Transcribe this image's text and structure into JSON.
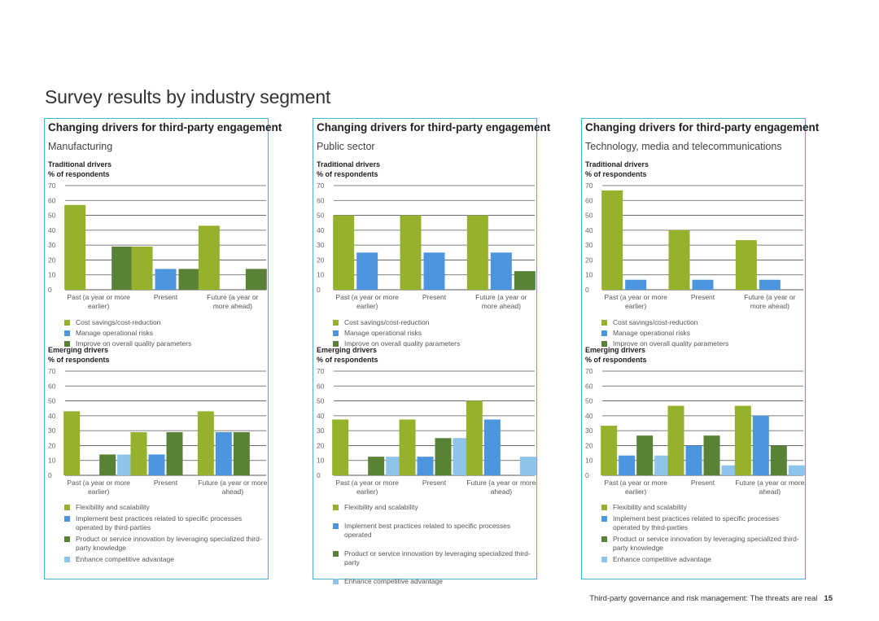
{
  "page": {
    "title": "Survey results by industry segment",
    "footer_text": "Third-party governance and risk management: The threats are real",
    "page_number": "15"
  },
  "colors": {
    "border": "#49b0d8",
    "green": "#96b12b",
    "blue": "#4c96e0",
    "dark_green": "#5a8237",
    "light_blue": "#8ec3ea"
  },
  "labels": {
    "traditional_title": "Traditional drivers",
    "emerging_title": "Emerging drivers",
    "y_unit": "% of respondents"
  },
  "legends": {
    "traditional": [
      {
        "name": "Cost savings/cost-reduction",
        "color": "#96b12b"
      },
      {
        "name": "Manage operational risks",
        "color": "#4c96e0"
      },
      {
        "name": "Improve on overall quality parameters",
        "color": "#5a8237"
      }
    ],
    "emerging": [
      {
        "name": "Flexibility and scalability",
        "color": "#96b12b"
      },
      {
        "name": "Implement best practices related to specific processes operated by third-parties",
        "color": "#4c96e0"
      },
      {
        "name": "Product or service innovation by leveraging specialized third-party knowledge",
        "color": "#5a8237"
      },
      {
        "name": "Enhance competitive advantage",
        "color": "#8ec3ea"
      }
    ],
    "emerging_public": [
      {
        "name": "Flexibility and scalability",
        "color": "#96b12b"
      },
      {
        "name": "Implement best practices related to specific processes operated",
        "color": "#4c96e0"
      },
      {
        "name": "Product or service innovation by leveraging specialized third-party",
        "color": "#5a8237"
      },
      {
        "name": "Enhance competitive advantage",
        "color": "#8ec3ea"
      }
    ]
  },
  "panels": [
    {
      "title": "Changing drivers for third-party engagement",
      "subtitle": "Manufacturing"
    },
    {
      "title": "Changing drivers for third-party engagement",
      "subtitle": "Public sector"
    },
    {
      "title": "Changing drivers for third-party engagement",
      "subtitle": "Technology, media and telecommunications"
    }
  ],
  "chart_data": [
    {
      "id": "manufacturing-traditional",
      "type": "bar",
      "title": "Traditional drivers",
      "ylabel": "% of respondents",
      "categories": [
        [
          "Past (a year or more",
          "earlier)"
        ],
        [
          "Present"
        ],
        [
          "Future (a year or",
          "more ahead)"
        ]
      ],
      "yticks": [
        0,
        10,
        20,
        30,
        40,
        50,
        60,
        70
      ],
      "ylim": [
        0,
        70
      ],
      "series": [
        {
          "name": "Cost savings/cost-reduction",
          "color": "#96b12b",
          "values": [
            57,
            29,
            43
          ]
        },
        {
          "name": "Manage operational risks",
          "color": "#4c96e0",
          "values": [
            0,
            14,
            0
          ]
        },
        {
          "name": "Improve on overall quality parameters",
          "color": "#5a8237",
          "values": [
            29,
            14,
            14
          ]
        }
      ]
    },
    {
      "id": "manufacturing-emerging",
      "type": "bar",
      "title": "Emerging drivers",
      "ylabel": "% of respondents",
      "categories": [
        [
          "Past (a year or more",
          "earlier)"
        ],
        [
          "Present"
        ],
        [
          "Future (a year or more",
          "ahead)"
        ]
      ],
      "yticks": [
        0,
        10,
        20,
        30,
        40,
        50,
        60,
        70
      ],
      "ylim": [
        0,
        70
      ],
      "series": [
        {
          "name": "Flexibility and scalability",
          "color": "#96b12b",
          "values": [
            43,
            29,
            43
          ]
        },
        {
          "name": "Implement best practices related to specific processes operated by third-parties",
          "color": "#4c96e0",
          "values": [
            0,
            14,
            29
          ]
        },
        {
          "name": "Product or service innovation by leveraging specialized third-party knowledge",
          "color": "#5a8237",
          "values": [
            14,
            29,
            29
          ]
        },
        {
          "name": "Enhance competitive advantage",
          "color": "#8ec3ea",
          "values": [
            14,
            0,
            0
          ]
        }
      ]
    },
    {
      "id": "public-traditional",
      "type": "bar",
      "title": "Traditional drivers",
      "ylabel": "% of respondents",
      "categories": [
        [
          "Past (a year or more",
          "earlier)"
        ],
        [
          "Present"
        ],
        [
          "Future (a year or",
          "more ahead)"
        ]
      ],
      "yticks": [
        0,
        10,
        20,
        30,
        40,
        50,
        60,
        70
      ],
      "ylim": [
        0,
        70
      ],
      "series": [
        {
          "name": "Cost savings/cost-reduction",
          "color": "#96b12b",
          "values": [
            50,
            50,
            50
          ]
        },
        {
          "name": "Manage operational risks",
          "color": "#4c96e0",
          "values": [
            25,
            25,
            25
          ]
        },
        {
          "name": "Improve on overall quality parameters",
          "color": "#5a8237",
          "values": [
            0,
            0,
            12.5
          ]
        }
      ]
    },
    {
      "id": "public-emerging",
      "type": "bar",
      "title": "Emerging drivers",
      "ylabel": "% of respondents",
      "categories": [
        [
          "Past (a year or more",
          "earlier)"
        ],
        [
          "Present"
        ],
        [
          "Future (a year or more",
          "ahead)"
        ]
      ],
      "yticks": [
        0,
        10,
        20,
        30,
        40,
        50,
        60,
        70
      ],
      "ylim": [
        0,
        70
      ],
      "series": [
        {
          "name": "Flexibility and scalability",
          "color": "#96b12b",
          "values": [
            37.5,
            37.5,
            50
          ]
        },
        {
          "name": "Implement best practices related to specific processes operated",
          "color": "#4c96e0",
          "values": [
            0,
            12.5,
            37.5
          ]
        },
        {
          "name": "Product or service innovation by leveraging specialized third-party",
          "color": "#5a8237",
          "values": [
            12.5,
            25,
            0
          ]
        },
        {
          "name": "Enhance competitive advantage",
          "color": "#8ec3ea",
          "values": [
            12.5,
            25,
            12.5
          ]
        }
      ]
    },
    {
      "id": "tmt-traditional",
      "type": "bar",
      "title": "Traditional drivers",
      "ylabel": "% of respondents",
      "categories": [
        [
          "Past (a year or more",
          "earlier)"
        ],
        [
          "Present"
        ],
        [
          "Future (a year or",
          "more ahead)"
        ]
      ],
      "yticks": [
        0,
        10,
        20,
        30,
        40,
        50,
        60,
        70
      ],
      "ylim": [
        0,
        70
      ],
      "series": [
        {
          "name": "Cost savings/cost-reduction",
          "color": "#96b12b",
          "values": [
            66.7,
            40,
            33.3
          ]
        },
        {
          "name": "Manage operational risks",
          "color": "#4c96e0",
          "values": [
            6.7,
            6.7,
            6.7
          ]
        },
        {
          "name": "Improve on overall quality parameters",
          "color": "#5a8237",
          "values": [
            0,
            0,
            0
          ]
        }
      ]
    },
    {
      "id": "tmt-emerging",
      "type": "bar",
      "title": "Emerging drivers",
      "ylabel": "% of respondents",
      "categories": [
        [
          "Past (a year or more",
          "earlier)"
        ],
        [
          "Present"
        ],
        [
          "Future (a year or more",
          "ahead)"
        ]
      ],
      "yticks": [
        0,
        10,
        20,
        30,
        40,
        50,
        60,
        70
      ],
      "ylim": [
        0,
        70
      ],
      "series": [
        {
          "name": "Flexibility and scalability",
          "color": "#96b12b",
          "values": [
            33.3,
            46.7,
            46.7
          ]
        },
        {
          "name": "Implement best practices related to specific processes operated by third-parties",
          "color": "#4c96e0",
          "values": [
            13.3,
            20,
            40
          ]
        },
        {
          "name": "Product or service innovation by leveraging specialized third-party knowledge",
          "color": "#5a8237",
          "values": [
            26.7,
            26.7,
            20
          ]
        },
        {
          "name": "Enhance competitive advantage",
          "color": "#8ec3ea",
          "values": [
            13.3,
            6.7,
            6.7
          ]
        }
      ]
    }
  ]
}
